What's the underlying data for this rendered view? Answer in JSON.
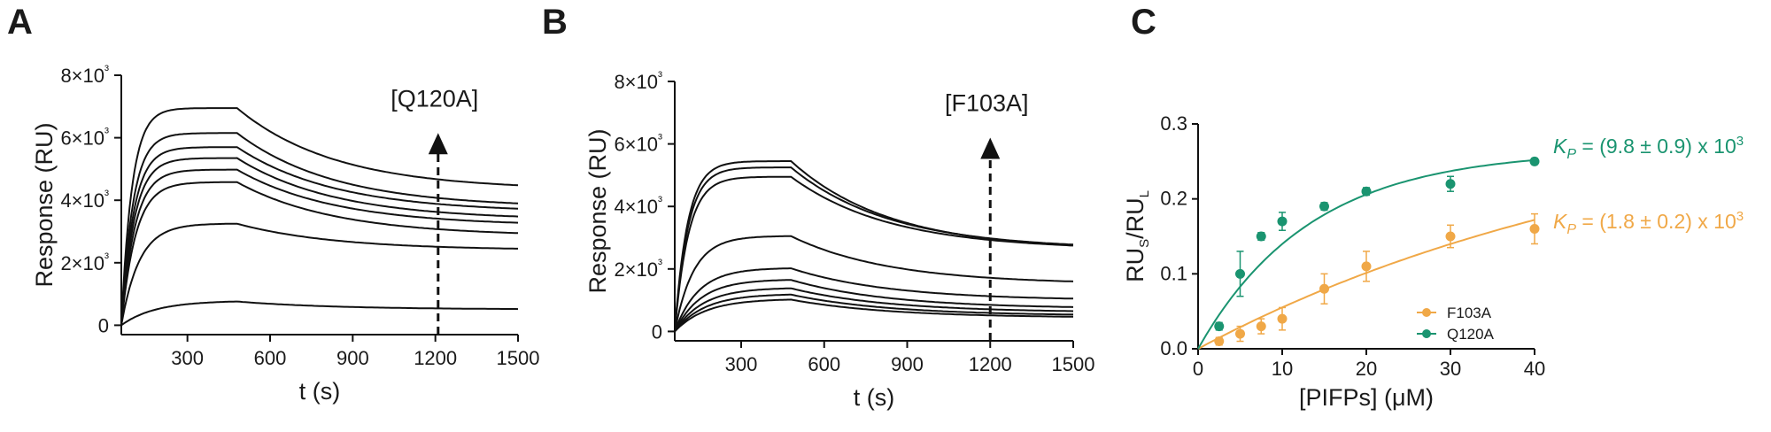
{
  "colors": {
    "curve": "#111111",
    "q120a": "#1a9470",
    "f103a": "#f0a847"
  },
  "chart_data": [
    {
      "type": "line",
      "panel": "A",
      "xlabel": "t (s)",
      "ylabel": "Response (RU)",
      "xlim": [
        60,
        1500
      ],
      "ylim": [
        -300,
        8000
      ],
      "x_ticks": [
        300,
        600,
        900,
        1200,
        1500
      ],
      "y_ticks": [
        0,
        2000,
        4000,
        6000,
        8000
      ],
      "y_tick_labels": [
        "0",
        "2×10³",
        "4×10³",
        "6×10³",
        "8×10³"
      ],
      "injection_start": 60,
      "injection_end": 480,
      "series": [
        {
          "plateau": 6950,
          "end": 4480
        },
        {
          "plateau": 6150,
          "end": 3900
        },
        {
          "plateau": 5700,
          "end": 3730
        },
        {
          "plateau": 5350,
          "end": 3480
        },
        {
          "plateau": 4980,
          "end": 3280
        },
        {
          "plateau": 4580,
          "end": 2950
        },
        {
          "plateau": 3250,
          "end": 2450
        },
        {
          "plateau": 760,
          "end": 520
        }
      ],
      "annotation": {
        "label": "[Q120A]",
        "x": 1210,
        "y_from": -300,
        "y_to": 6150
      }
    },
    {
      "type": "line",
      "panel": "B",
      "xlabel": "t (s)",
      "ylabel": "Response (RU)",
      "xlim": [
        60,
        1500
      ],
      "ylim": [
        -300,
        8000
      ],
      "x_ticks": [
        300,
        600,
        900,
        1200,
        1500
      ],
      "y_ticks": [
        0,
        2000,
        4000,
        6000,
        8000
      ],
      "y_tick_labels": [
        "0",
        "2×10³",
        "4×10³",
        "6×10³",
        "8×10³"
      ],
      "injection_start": 60,
      "injection_end": 480,
      "series": [
        {
          "plateau": 5450,
          "end": 2750
        },
        {
          "plateau": 5250,
          "end": 2780
        },
        {
          "plateau": 4950,
          "end": 2750
        },
        {
          "plateau": 3050,
          "end": 1600
        },
        {
          "plateau": 2020,
          "end": 1050
        },
        {
          "plateau": 1650,
          "end": 780
        },
        {
          "plateau": 1380,
          "end": 650
        },
        {
          "plateau": 1180,
          "end": 540
        },
        {
          "plateau": 1020,
          "end": 470
        }
      ],
      "annotation": {
        "label": "[F103A]",
        "x": 1200,
        "y_from": -300,
        "y_to": 6200
      }
    },
    {
      "type": "scatter",
      "panel": "C",
      "xlabel": "[PIFPs] (μM)",
      "ylabel_main": "RU",
      "ylabel_sub1": "S",
      "ylabel_slash": "/RU",
      "ylabel_sub2": "L",
      "xlim": [
        0,
        40
      ],
      "ylim": [
        0,
        0.3
      ],
      "x_ticks": [
        0,
        10,
        20,
        30,
        40
      ],
      "y_ticks": [
        0.0,
        0.1,
        0.2,
        0.3
      ],
      "y_tick_labels": [
        "0.0",
        "0.1",
        "0.2",
        "0.3"
      ],
      "legend_position": "bottom-right",
      "series": [
        {
          "name": "F103A",
          "color": "#f0a847",
          "x": [
            2.5,
            5,
            7.5,
            10,
            15,
            20,
            30,
            40
          ],
          "y": [
            0.01,
            0.02,
            0.03,
            0.04,
            0.08,
            0.11,
            0.15,
            0.16
          ],
          "err": [
            0.005,
            0.01,
            0.01,
            0.015,
            0.02,
            0.02,
            0.015,
            0.02
          ],
          "fit": {
            "a": 0.335,
            "k": 0.018
          },
          "kp_label": "(1.8 ± 0.2) x 10",
          "kp_exp": "3"
        },
        {
          "name": "Q120A",
          "color": "#1a9470",
          "x": [
            2.5,
            5,
            7.5,
            10,
            15,
            20,
            30,
            40
          ],
          "y": [
            0.03,
            0.1,
            0.15,
            0.17,
            0.19,
            0.21,
            0.22,
            0.25
          ],
          "err": [
            0.005,
            0.03,
            0.005,
            0.012,
            0.005,
            0.005,
            0.01,
            0.004
          ],
          "fit": {
            "a": 0.265,
            "k": 0.075
          },
          "kp_label": "(9.8 ± 0.9) x 10",
          "kp_exp": "3"
        }
      ],
      "kp_symbol": "K",
      "kp_sub": "P"
    }
  ]
}
